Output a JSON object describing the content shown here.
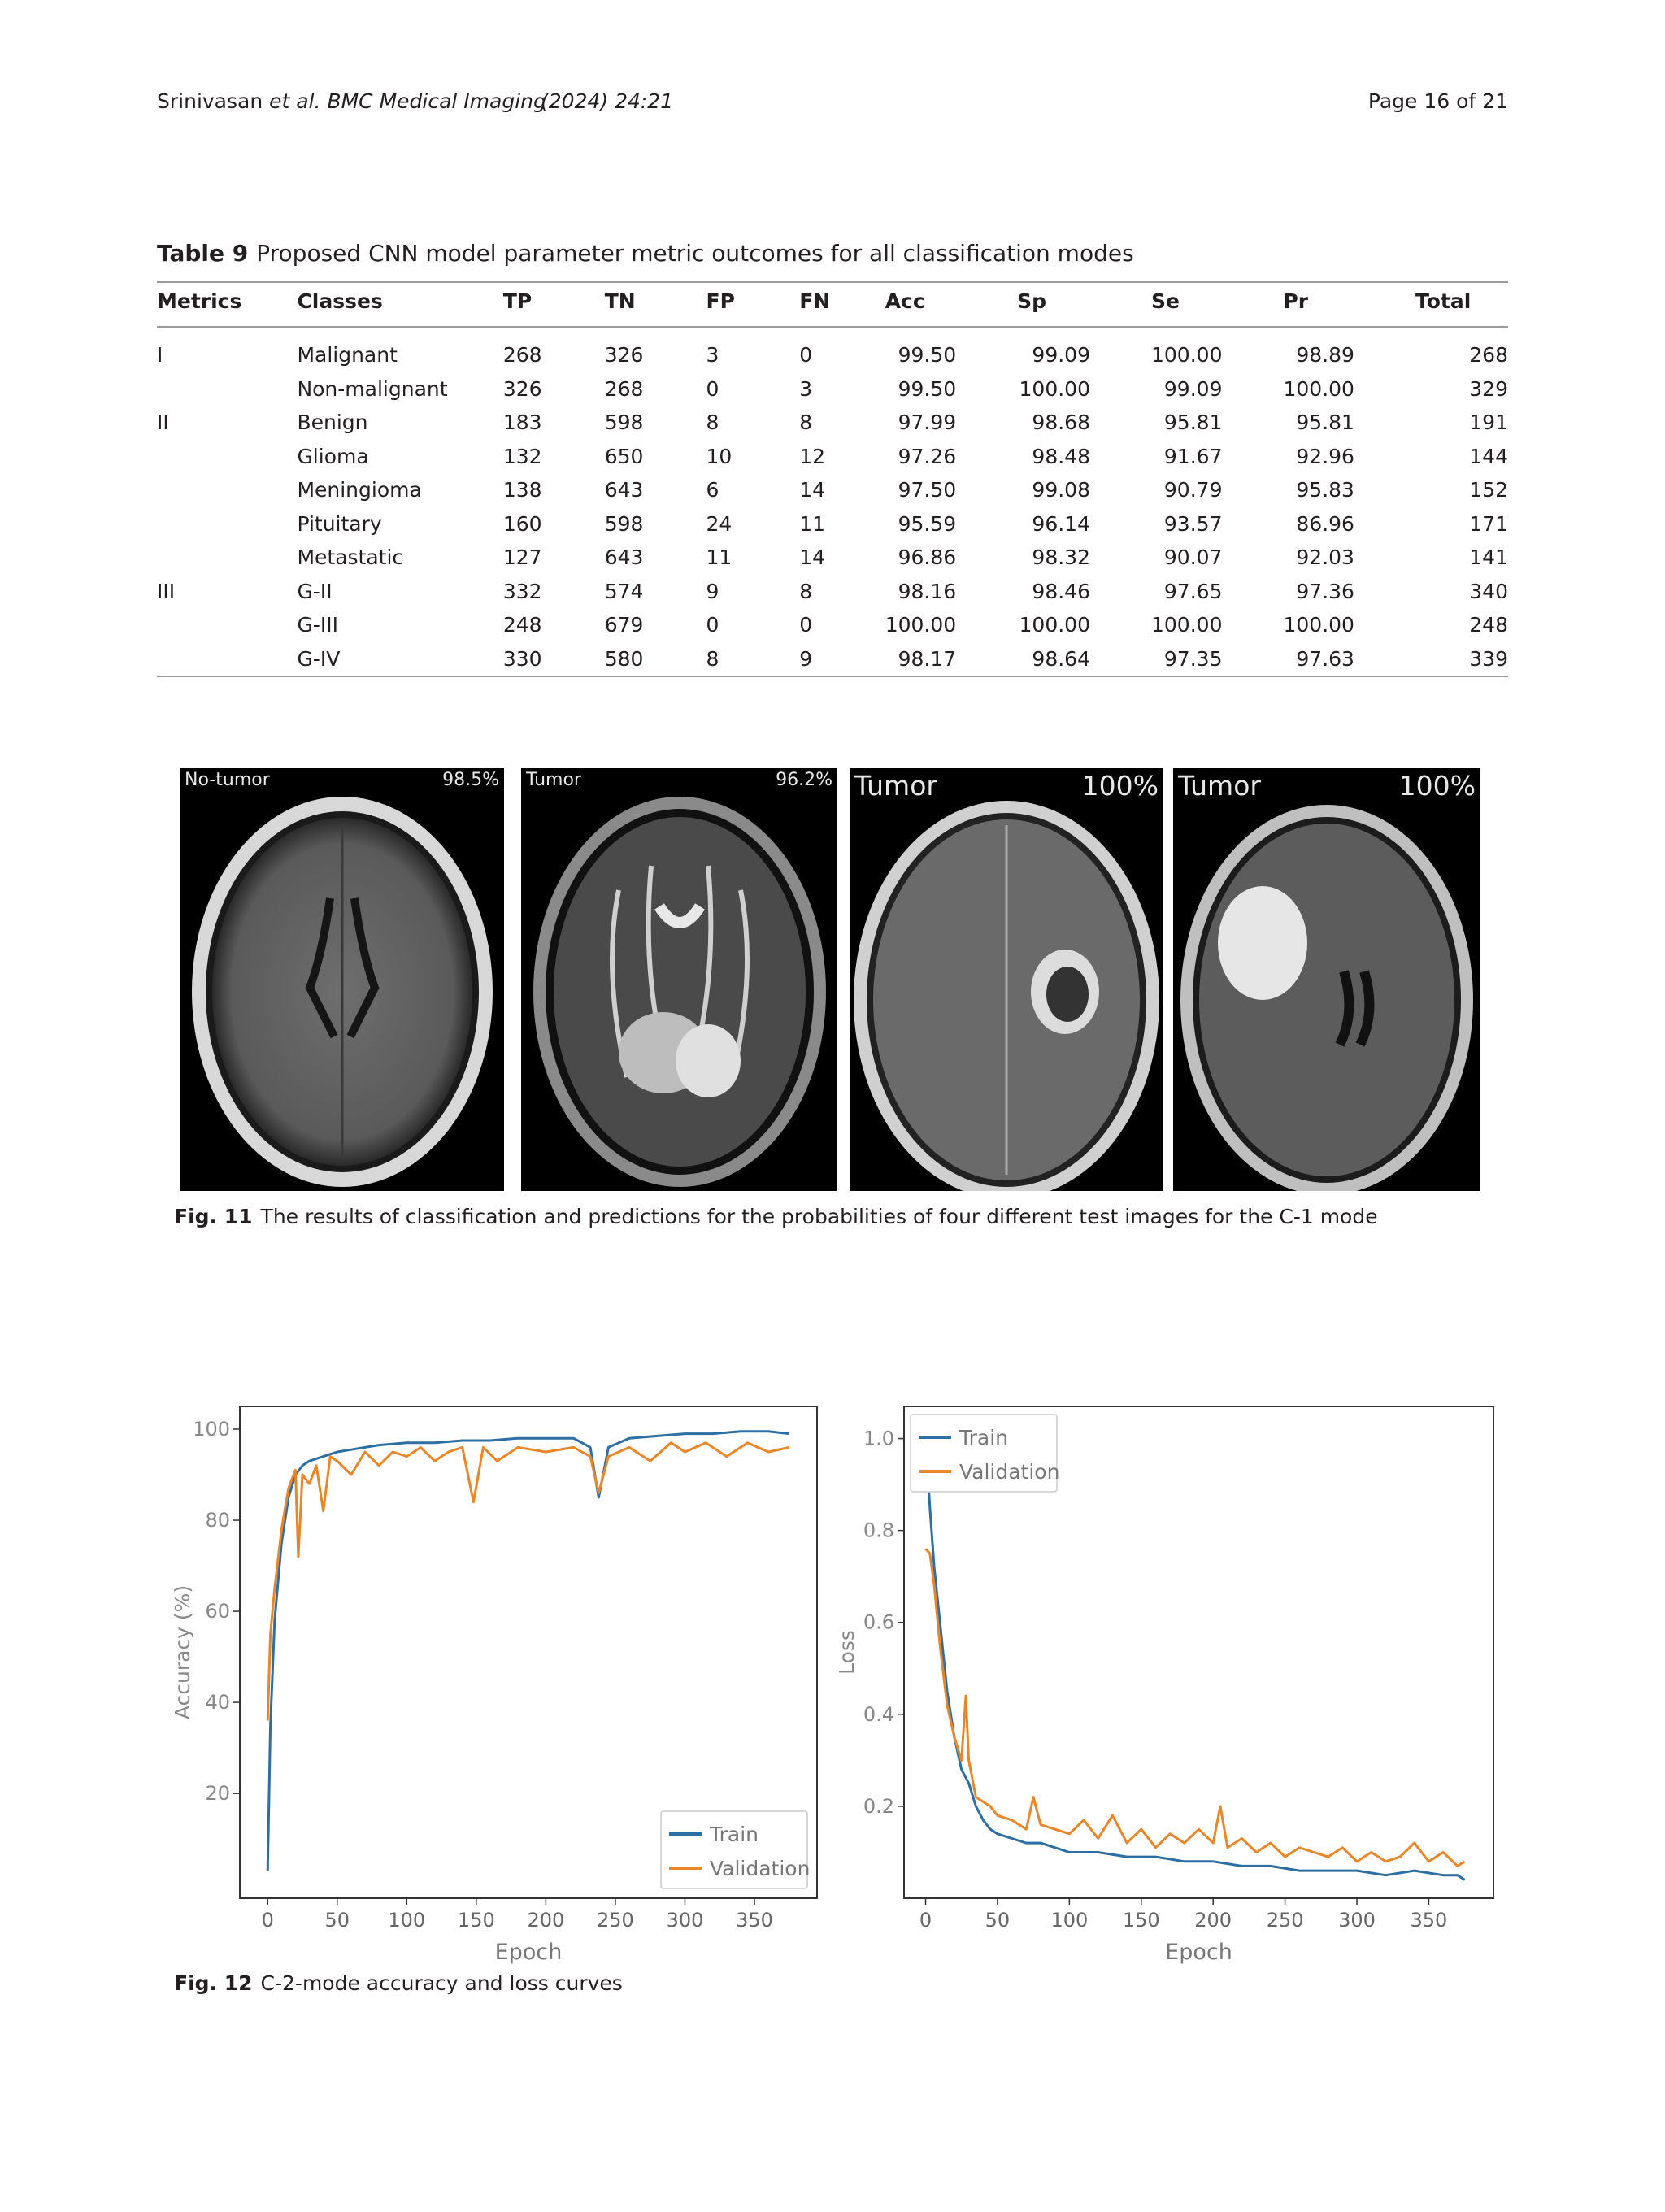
{
  "header": {
    "authors": "Srinivasan",
    "journal": "et al. BMC Medical Imaging",
    "year_volume": "(2024) 24:21",
    "page": "Page 16 of 21"
  },
  "table9": {
    "label": "Table 9",
    "caption": "Proposed CNN model parameter metric outcomes for all classification modes",
    "columns": [
      "Metrics",
      "Classes",
      "TP",
      "TN",
      "FP",
      "FN",
      "Acc",
      "Sp",
      "Se",
      "Pr",
      "Total"
    ],
    "rows": [
      [
        "I",
        "Malignant",
        "268",
        "326",
        "3",
        "0",
        "99.50",
        "99.09",
        "100.00",
        "98.89",
        "268"
      ],
      [
        "",
        "Non-malignant",
        "326",
        "268",
        "0",
        "3",
        "99.50",
        "100.00",
        "99.09",
        "100.00",
        "329"
      ],
      [
        "II",
        "Benign",
        "183",
        "598",
        "8",
        "8",
        "97.99",
        "98.68",
        "95.81",
        "95.81",
        "191"
      ],
      [
        "",
        "Glioma",
        "132",
        "650",
        "10",
        "12",
        "97.26",
        "98.48",
        "91.67",
        "92.96",
        "144"
      ],
      [
        "",
        "Meningioma",
        "138",
        "643",
        "6",
        "14",
        "97.50",
        "99.08",
        "90.79",
        "95.83",
        "152"
      ],
      [
        "",
        "Pituitary",
        "160",
        "598",
        "24",
        "11",
        "95.59",
        "96.14",
        "93.57",
        "86.96",
        "171"
      ],
      [
        "",
        "Metastatic",
        "127",
        "643",
        "11",
        "14",
        "96.86",
        "98.32",
        "90.07",
        "92.03",
        "141"
      ],
      [
        "III",
        "G-II",
        "332",
        "574",
        "9",
        "8",
        "98.16",
        "98.46",
        "97.65",
        "97.36",
        "340"
      ],
      [
        "",
        "G-III",
        "248",
        "679",
        "0",
        "0",
        "100.00",
        "100.00",
        "100.00",
        "100.00",
        "248"
      ],
      [
        "",
        "G-IV",
        "330",
        "580",
        "8",
        "9",
        "98.17",
        "98.64",
        "97.35",
        "97.63",
        "339"
      ]
    ]
  },
  "fig11": {
    "label": "Fig. 11",
    "caption": "The results of classification and predictions for the probabilities of four different test images for the C-1 mode",
    "panels": [
      {
        "label": "No-tumor",
        "prob": "98.5%"
      },
      {
        "label": "Tumor",
        "prob": "96.2%"
      },
      {
        "label": "Tumor",
        "prob": "100%"
      },
      {
        "label": "Tumor",
        "prob": "100%"
      }
    ]
  },
  "fig12": {
    "label": "Fig. 12",
    "caption": "C-2-mode accuracy and loss curves"
  },
  "chart_data": [
    {
      "type": "line",
      "title": "",
      "xlabel": "Epoch",
      "ylabel": "Accuracy (%)",
      "xlim": [
        -20,
        395
      ],
      "ylim": [
        -3,
        105
      ],
      "xticks": [
        "0",
        "50",
        "100",
        "150",
        "200",
        "250",
        "300",
        "350"
      ],
      "yticks": [
        "20",
        "40",
        "60",
        "80",
        "100"
      ],
      "legend_position": "bottom-right",
      "colors": {
        "Train": "#2e6fa3",
        "Validation": "#e8872a"
      },
      "series": [
        {
          "name": "Train",
          "x": [
            0,
            2,
            5,
            10,
            15,
            20,
            25,
            30,
            40,
            50,
            60,
            80,
            100,
            120,
            140,
            160,
            180,
            200,
            220,
            232,
            238,
            245,
            260,
            280,
            300,
            320,
            340,
            360,
            375
          ],
          "y": [
            3,
            35,
            58,
            75,
            85,
            90,
            92,
            93,
            94,
            95,
            95.5,
            96.5,
            97,
            97,
            97.5,
            97.5,
            98,
            98,
            98,
            96,
            85,
            96,
            98,
            98.5,
            99,
            99,
            99.5,
            99.5,
            99
          ]
        },
        {
          "name": "Validation",
          "x": [
            0,
            2,
            5,
            10,
            15,
            20,
            22,
            25,
            30,
            35,
            40,
            45,
            50,
            60,
            70,
            80,
            90,
            100,
            110,
            120,
            130,
            140,
            148,
            155,
            165,
            180,
            200,
            220,
            232,
            238,
            245,
            260,
            275,
            290,
            300,
            315,
            330,
            345,
            360,
            375
          ],
          "y": [
            36,
            55,
            65,
            78,
            87,
            91,
            72,
            90,
            88,
            92,
            82,
            94,
            93,
            90,
            95,
            92,
            95,
            94,
            96,
            93,
            95,
            96,
            84,
            96,
            93,
            96,
            95,
            96,
            94,
            86,
            94,
            96,
            93,
            97,
            95,
            97,
            94,
            97,
            95,
            96
          ]
        }
      ]
    },
    {
      "type": "line",
      "title": "",
      "xlabel": "Epoch",
      "ylabel": "Loss",
      "xlim": [
        -15,
        395
      ],
      "ylim": [
        0,
        1.07
      ],
      "xticks": [
        "0",
        "50",
        "100",
        "150",
        "200",
        "250",
        "300",
        "350"
      ],
      "yticks": [
        "0.2",
        "0.4",
        "0.6",
        "0.8",
        "1.0"
      ],
      "legend_position": "top-left",
      "colors": {
        "Train": "#2e6fa3",
        "Validation": "#e8872a"
      },
      "series": [
        {
          "name": "Train",
          "x": [
            0,
            3,
            6,
            10,
            15,
            20,
            25,
            30,
            35,
            40,
            45,
            50,
            60,
            70,
            80,
            90,
            100,
            120,
            140,
            160,
            180,
            200,
            220,
            240,
            260,
            280,
            300,
            320,
            340,
            360,
            370,
            375
          ],
          "y": [
            1.0,
            0.85,
            0.72,
            0.6,
            0.45,
            0.35,
            0.28,
            0.25,
            0.2,
            0.17,
            0.15,
            0.14,
            0.13,
            0.12,
            0.12,
            0.11,
            0.1,
            0.1,
            0.09,
            0.09,
            0.08,
            0.08,
            0.07,
            0.07,
            0.06,
            0.06,
            0.06,
            0.05,
            0.06,
            0.05,
            0.05,
            0.04
          ]
        },
        {
          "name": "Validation",
          "x": [
            0,
            3,
            6,
            10,
            15,
            20,
            25,
            28,
            30,
            35,
            40,
            45,
            50,
            60,
            70,
            75,
            80,
            90,
            100,
            110,
            120,
            130,
            140,
            150,
            160,
            170,
            180,
            190,
            200,
            205,
            210,
            220,
            230,
            240,
            250,
            260,
            270,
            280,
            290,
            300,
            310,
            320,
            330,
            340,
            350,
            360,
            370,
            375
          ],
          "y": [
            0.76,
            0.75,
            0.68,
            0.55,
            0.42,
            0.35,
            0.3,
            0.44,
            0.3,
            0.22,
            0.21,
            0.2,
            0.18,
            0.17,
            0.15,
            0.22,
            0.16,
            0.15,
            0.14,
            0.17,
            0.13,
            0.18,
            0.12,
            0.15,
            0.11,
            0.14,
            0.12,
            0.15,
            0.12,
            0.2,
            0.11,
            0.13,
            0.1,
            0.12,
            0.09,
            0.11,
            0.1,
            0.09,
            0.11,
            0.08,
            0.1,
            0.08,
            0.09,
            0.12,
            0.08,
            0.1,
            0.07,
            0.08
          ]
        }
      ]
    }
  ]
}
